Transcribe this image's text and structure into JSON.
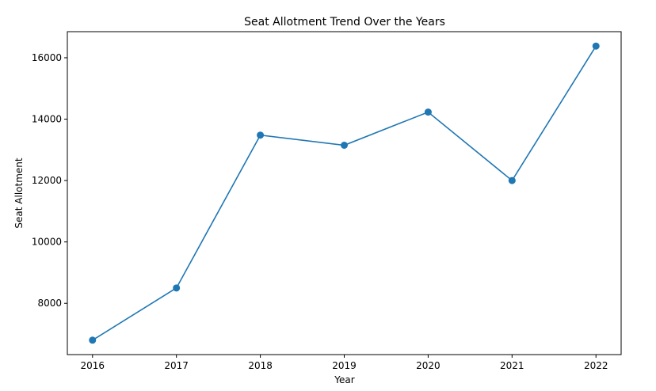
{
  "chart_data": {
    "type": "line",
    "title": "Seat Allotment Trend Over the Years",
    "xlabel": "Year",
    "ylabel": "Seat Allotment",
    "x": [
      2016,
      2017,
      2018,
      2019,
      2020,
      2021,
      2022
    ],
    "series": [
      {
        "values": [
          6800,
          8500,
          13480,
          13150,
          14230,
          12000,
          16380
        ],
        "color": "#1f77b4",
        "marker": "circle"
      }
    ],
    "x_ticks": [
      "2016",
      "2017",
      "2018",
      "2019",
      "2020",
      "2021",
      "2022"
    ],
    "y_ticks": [
      8000,
      10000,
      12000,
      14000,
      16000
    ],
    "y_tick_labels": [
      "8000",
      "10000",
      "12000",
      "14000",
      "16000"
    ],
    "xlim": [
      2015.7,
      2022.3
    ],
    "ylim": [
      6330,
      16850
    ],
    "grid": false,
    "legend": "none"
  }
}
